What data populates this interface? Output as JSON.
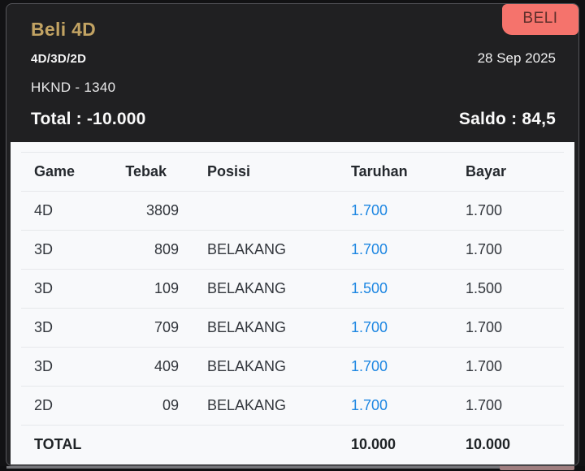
{
  "header": {
    "title": "Beli 4D",
    "buy_button_label": "BELI",
    "game_types": "4D/3D/2D",
    "date": "28 Sep 2025",
    "market": "HKND - 1340",
    "total_text": "Total : -10.000",
    "saldo_text": "Saldo : 84,5"
  },
  "table": {
    "columns": [
      "Game",
      "Tebak",
      "Posisi",
      "Taruhan",
      "Bayar"
    ],
    "rows": [
      {
        "game": "4D",
        "tebak": "3809",
        "posisi": "",
        "taruhan": "1.700",
        "bayar": "1.700"
      },
      {
        "game": "3D",
        "tebak": "809",
        "posisi": "BELAKANG",
        "taruhan": "1.700",
        "bayar": "1.700"
      },
      {
        "game": "3D",
        "tebak": "109",
        "posisi": "BELAKANG",
        "taruhan": "1.500",
        "bayar": "1.500"
      },
      {
        "game": "3D",
        "tebak": "709",
        "posisi": "BELAKANG",
        "taruhan": "1.700",
        "bayar": "1.700"
      },
      {
        "game": "3D",
        "tebak": "409",
        "posisi": "BELAKANG",
        "taruhan": "1.700",
        "bayar": "1.700"
      },
      {
        "game": "2D",
        "tebak": "09",
        "posisi": "BELAKANG",
        "taruhan": "1.700",
        "bayar": "1.700"
      }
    ],
    "total_row": {
      "label": "TOTAL",
      "taruhan": "10.000",
      "bayar": "10.000"
    }
  },
  "colors": {
    "accent_gold": "#c2a363",
    "buy_button": "#f5736c",
    "taruhan_link": "#1e87e2"
  }
}
